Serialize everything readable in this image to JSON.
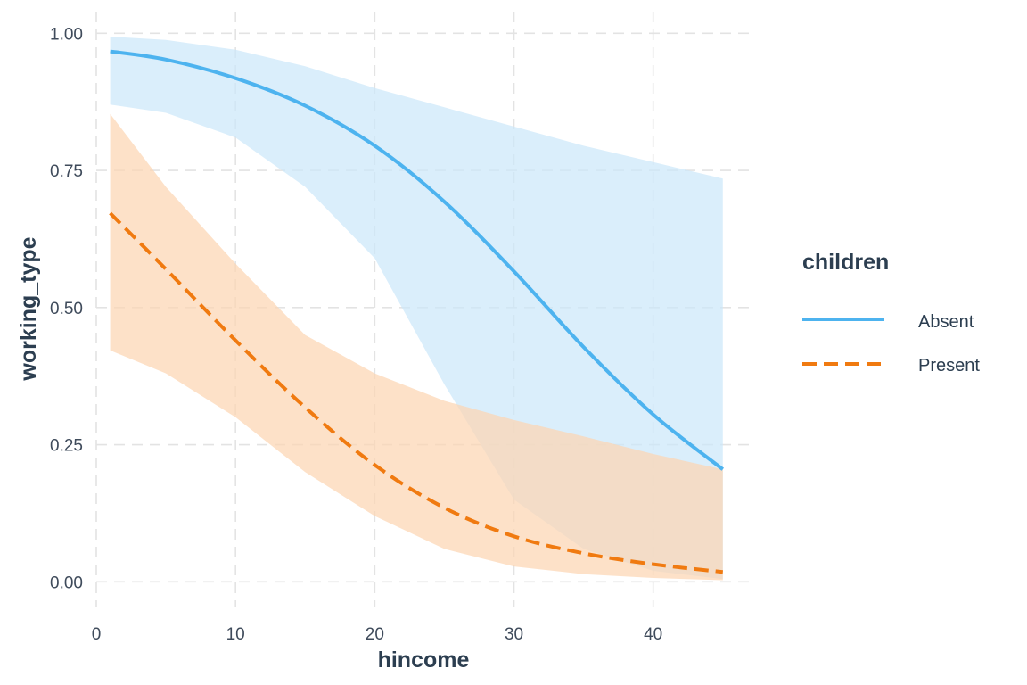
{
  "chart_data": {
    "type": "line",
    "xlabel": "hincome",
    "ylabel": "working_type",
    "xlim": [
      0,
      47
    ],
    "ylim": [
      -0.045,
      1.02
    ],
    "x_ticks": [
      0,
      10,
      20,
      30,
      40
    ],
    "x_tick_labels": [
      "0",
      "10",
      "20",
      "30",
      "40"
    ],
    "y_ticks": [
      0,
      0.25,
      0.5,
      0.75,
      1.0
    ],
    "y_tick_labels": [
      "0.00",
      "0.25",
      "0.50",
      "0.75",
      "1.00"
    ],
    "grid": true,
    "legend": {
      "title": "children",
      "position": "right"
    },
    "series": [
      {
        "name": "Absent",
        "color": "#4db3ef",
        "ribbon_color": "#cce8fa",
        "line_style": "solid",
        "x": [
          1,
          5,
          10,
          15,
          20,
          25,
          30,
          35,
          40,
          45
        ],
        "y": [
          0.967,
          0.952,
          0.918,
          0.868,
          0.795,
          0.693,
          0.566,
          0.428,
          0.305,
          0.205
        ],
        "lower": [
          0.87,
          0.855,
          0.81,
          0.72,
          0.59,
          0.36,
          0.15,
          0.06,
          0.02,
          0.005
        ],
        "upper": [
          0.994,
          0.988,
          0.97,
          0.94,
          0.9,
          0.865,
          0.83,
          0.795,
          0.765,
          0.735
        ]
      },
      {
        "name": "Present",
        "color": "#f07a10",
        "ribbon_color": "#fcd6b3",
        "line_style": "dashed",
        "x": [
          1,
          5,
          10,
          15,
          20,
          25,
          30,
          35,
          40,
          45
        ],
        "y": [
          0.672,
          0.57,
          0.44,
          0.318,
          0.213,
          0.135,
          0.083,
          0.052,
          0.032,
          0.018
        ],
        "lower": [
          0.422,
          0.38,
          0.3,
          0.2,
          0.12,
          0.06,
          0.028,
          0.014,
          0.007,
          0.003
        ],
        "upper": [
          0.853,
          0.72,
          0.58,
          0.45,
          0.38,
          0.33,
          0.295,
          0.265,
          0.233,
          0.205
        ]
      }
    ]
  }
}
